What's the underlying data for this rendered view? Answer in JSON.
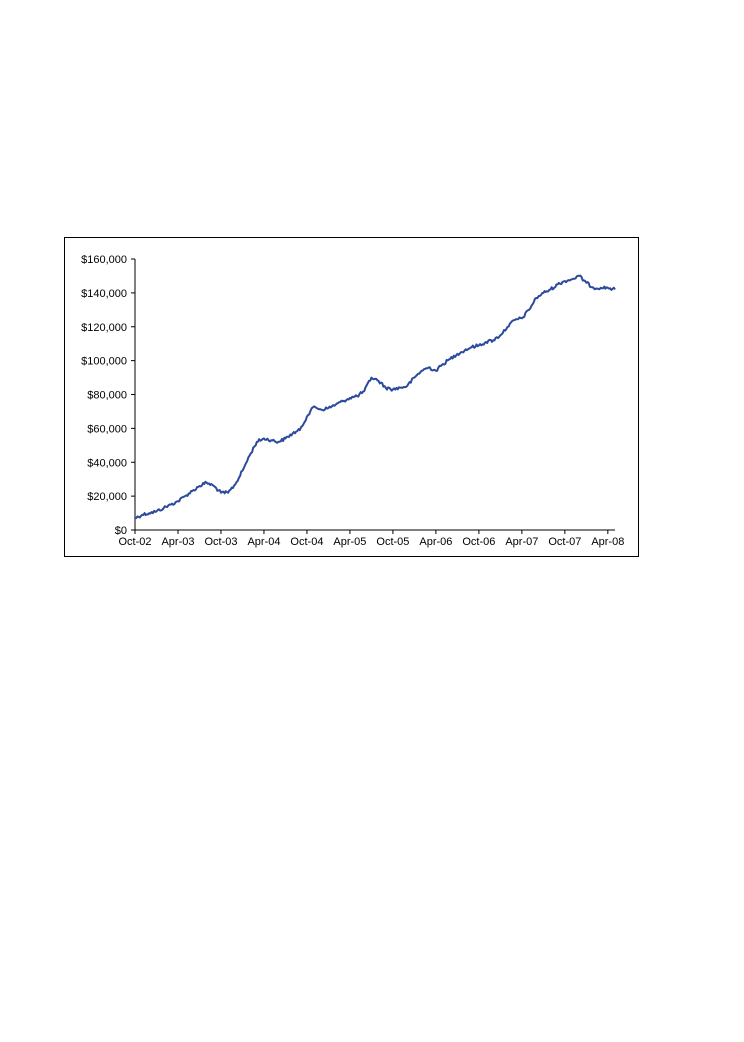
{
  "chart_data": {
    "type": "line",
    "title": "",
    "xlabel": "",
    "ylabel": "",
    "ylim": [
      0,
      160000
    ],
    "y_ticks": [
      0,
      20000,
      40000,
      60000,
      80000,
      100000,
      120000,
      140000,
      160000
    ],
    "y_tick_labels": [
      "$0",
      "$20,000",
      "$40,000",
      "$60,000",
      "$80,000",
      "$100,000",
      "$120,000",
      "$140,000",
      "$160,000"
    ],
    "x_tick_labels": [
      "Oct-02",
      "Apr-03",
      "Oct-03",
      "Apr-04",
      "Oct-04",
      "Apr-05",
      "Oct-05",
      "Apr-06",
      "Oct-06",
      "Apr-07",
      "Oct-07",
      "Apr-08"
    ],
    "x_range": [
      "2002-10",
      "2008-05"
    ],
    "grid": false,
    "legend": "none",
    "series": [
      {
        "color": "#2b4a9b",
        "x": [
          "2002-10",
          "2002-11",
          "2002-12",
          "2003-01",
          "2003-02",
          "2003-03",
          "2003-04",
          "2003-05",
          "2003-06",
          "2003-07",
          "2003-08",
          "2003-09",
          "2003-10",
          "2003-11",
          "2003-12",
          "2004-01",
          "2004-02",
          "2004-03",
          "2004-04",
          "2004-05",
          "2004-06",
          "2004-07",
          "2004-08",
          "2004-09",
          "2004-10",
          "2004-11",
          "2004-12",
          "2005-01",
          "2005-02",
          "2005-03",
          "2005-04",
          "2005-05",
          "2005-06",
          "2005-07",
          "2005-08",
          "2005-09",
          "2005-10",
          "2005-11",
          "2005-12",
          "2006-01",
          "2006-02",
          "2006-03",
          "2006-04",
          "2006-05",
          "2006-06",
          "2006-07",
          "2006-08",
          "2006-09",
          "2006-10",
          "2006-11",
          "2006-12",
          "2007-01",
          "2007-02",
          "2007-03",
          "2007-04",
          "2007-05",
          "2007-06",
          "2007-07",
          "2007-08",
          "2007-09",
          "2007-10",
          "2007-11",
          "2007-12",
          "2008-01",
          "2008-02",
          "2008-03",
          "2008-04",
          "2008-05"
        ],
        "values": [
          7000,
          9000,
          10000,
          11000,
          13000,
          15000,
          17000,
          20000,
          23000,
          26000,
          28000,
          26000,
          22000,
          22000,
          27000,
          35000,
          44000,
          52000,
          54000,
          53000,
          52000,
          54000,
          57000,
          59000,
          67000,
          73000,
          71000,
          72000,
          74000,
          76000,
          78000,
          79000,
          82000,
          90000,
          88000,
          84000,
          83000,
          84000,
          85000,
          90000,
          94000,
          96000,
          94000,
          98000,
          101000,
          104000,
          106000,
          108000,
          109000,
          111000,
          112000,
          115000,
          120000,
          124000,
          125000,
          130000,
          137000,
          140000,
          142000,
          145000,
          147000,
          148000,
          150000,
          146000,
          143000,
          143000,
          143000,
          142000
        ]
      }
    ]
  }
}
